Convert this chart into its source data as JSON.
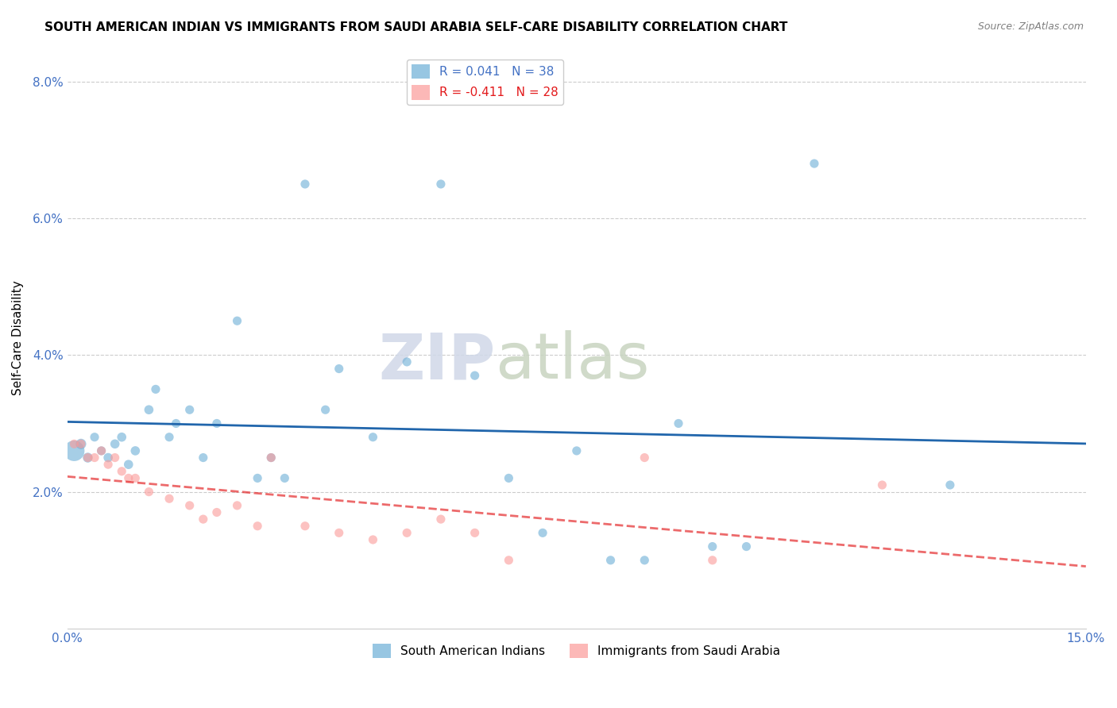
{
  "title": "SOUTH AMERICAN INDIAN VS IMMIGRANTS FROM SAUDI ARABIA SELF-CARE DISABILITY CORRELATION CHART",
  "source": "Source: ZipAtlas.com",
  "ylabel": "Self-Care Disability",
  "xlim": [
    0.0,
    0.15
  ],
  "ylim": [
    0.0,
    0.085
  ],
  "blue_color": "#6baed6",
  "pink_color": "#fb9a99",
  "blue_line_color": "#2166ac",
  "pink_line_color": "#e31a1c",
  "watermark_zip": "ZIP",
  "watermark_atlas": "atlas",
  "south_american_x": [
    0.001,
    0.002,
    0.003,
    0.004,
    0.005,
    0.006,
    0.007,
    0.008,
    0.009,
    0.01,
    0.012,
    0.013,
    0.015,
    0.016,
    0.018,
    0.02,
    0.022,
    0.025,
    0.028,
    0.03,
    0.032,
    0.035,
    0.038,
    0.04,
    0.045,
    0.05,
    0.055,
    0.06,
    0.065,
    0.07,
    0.075,
    0.08,
    0.085,
    0.09,
    0.095,
    0.1,
    0.11,
    0.13
  ],
  "south_american_y": [
    0.026,
    0.027,
    0.025,
    0.028,
    0.026,
    0.025,
    0.027,
    0.028,
    0.024,
    0.026,
    0.032,
    0.035,
    0.028,
    0.03,
    0.032,
    0.025,
    0.03,
    0.045,
    0.022,
    0.025,
    0.022,
    0.065,
    0.032,
    0.038,
    0.028,
    0.039,
    0.065,
    0.037,
    0.022,
    0.014,
    0.026,
    0.01,
    0.01,
    0.03,
    0.012,
    0.012,
    0.068,
    0.021
  ],
  "south_american_size": [
    350,
    90,
    80,
    65,
    65,
    70,
    70,
    70,
    70,
    70,
    70,
    65,
    65,
    65,
    65,
    65,
    65,
    65,
    65,
    65,
    65,
    65,
    65,
    65,
    65,
    65,
    65,
    65,
    65,
    65,
    65,
    65,
    65,
    65,
    65,
    65,
    65,
    65
  ],
  "saudi_x": [
    0.001,
    0.002,
    0.003,
    0.004,
    0.005,
    0.006,
    0.007,
    0.008,
    0.009,
    0.01,
    0.012,
    0.015,
    0.018,
    0.02,
    0.022,
    0.025,
    0.028,
    0.03,
    0.035,
    0.04,
    0.045,
    0.05,
    0.055,
    0.06,
    0.065,
    0.085,
    0.095,
    0.12
  ],
  "saudi_y": [
    0.027,
    0.027,
    0.025,
    0.025,
    0.026,
    0.024,
    0.025,
    0.023,
    0.022,
    0.022,
    0.02,
    0.019,
    0.018,
    0.016,
    0.017,
    0.018,
    0.015,
    0.025,
    0.015,
    0.014,
    0.013,
    0.014,
    0.016,
    0.014,
    0.01,
    0.025,
    0.01,
    0.021
  ],
  "saudi_size": [
    65,
    65,
    65,
    65,
    65,
    65,
    65,
    65,
    65,
    65,
    65,
    65,
    65,
    65,
    65,
    65,
    65,
    65,
    65,
    65,
    65,
    65,
    65,
    65,
    65,
    65,
    65,
    65
  ]
}
